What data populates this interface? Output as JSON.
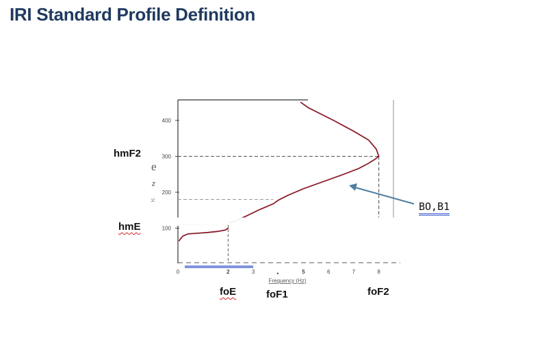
{
  "slide": {
    "title": "IRI Standard Profile Definition"
  },
  "labels": {
    "hmF2": "hmF2",
    "hmE": "hmE",
    "foE": "foE",
    "foF1": "foF1",
    "foF2": "foF2",
    "bo_b1": "BO,B1"
  },
  "axes": {
    "y_ticks": [
      "400",
      "300",
      "200",
      "100"
    ],
    "x_ticks": [
      "0",
      "2",
      "3",
      "5",
      "6",
      "7",
      "8"
    ],
    "x_label": "Frequency (Hz)",
    "y_label_fragments": [
      "e",
      "z",
      ":c"
    ]
  },
  "chart_data": {
    "type": "line",
    "xlabel": "Frequency (Hz)",
    "ylabel": "",
    "xlim": [
      0,
      8.6
    ],
    "ylim": [
      0,
      450
    ],
    "y_ticks": [
      100,
      200,
      300,
      400
    ],
    "x_ticks": [
      0,
      2,
      3,
      5,
      6,
      7,
      8
    ],
    "series": [
      {
        "x": [
          0.05,
          0.1,
          0.2,
          0.4,
          0.8,
          1.2,
          1.6,
          1.9,
          2.0
        ],
        "y": [
          65,
          70,
          78,
          84,
          86,
          88,
          91,
          95,
          100
        ]
      },
      {
        "x": [
          2.05,
          2.3,
          2.7,
          3.2,
          3.8,
          4.0,
          4.4,
          5.0,
          5.8,
          6.6,
          7.2,
          7.6,
          7.85,
          8.0,
          7.9,
          7.6,
          7.0,
          6.2,
          5.2,
          4.9
        ],
        "y": [
          115,
          120,
          133,
          150,
          168,
          178,
          192,
          210,
          230,
          250,
          266,
          281,
          292,
          300,
          320,
          345,
          370,
          400,
          435,
          450
        ]
      }
    ],
    "guides": {
      "hmF2": {
        "y": 300,
        "x_end": 8.0
      },
      "foF1": {
        "y": 180,
        "x_end": 3.8
      },
      "hmE": {
        "y": 110,
        "x_end": 2.0
      },
      "foE": {
        "x": 2.0
      },
      "foF2": {
        "x": 8.0
      }
    },
    "colors": {
      "curve": "#8b1c2b",
      "arrow": "#4f7ea0",
      "guide": "#555555"
    }
  }
}
